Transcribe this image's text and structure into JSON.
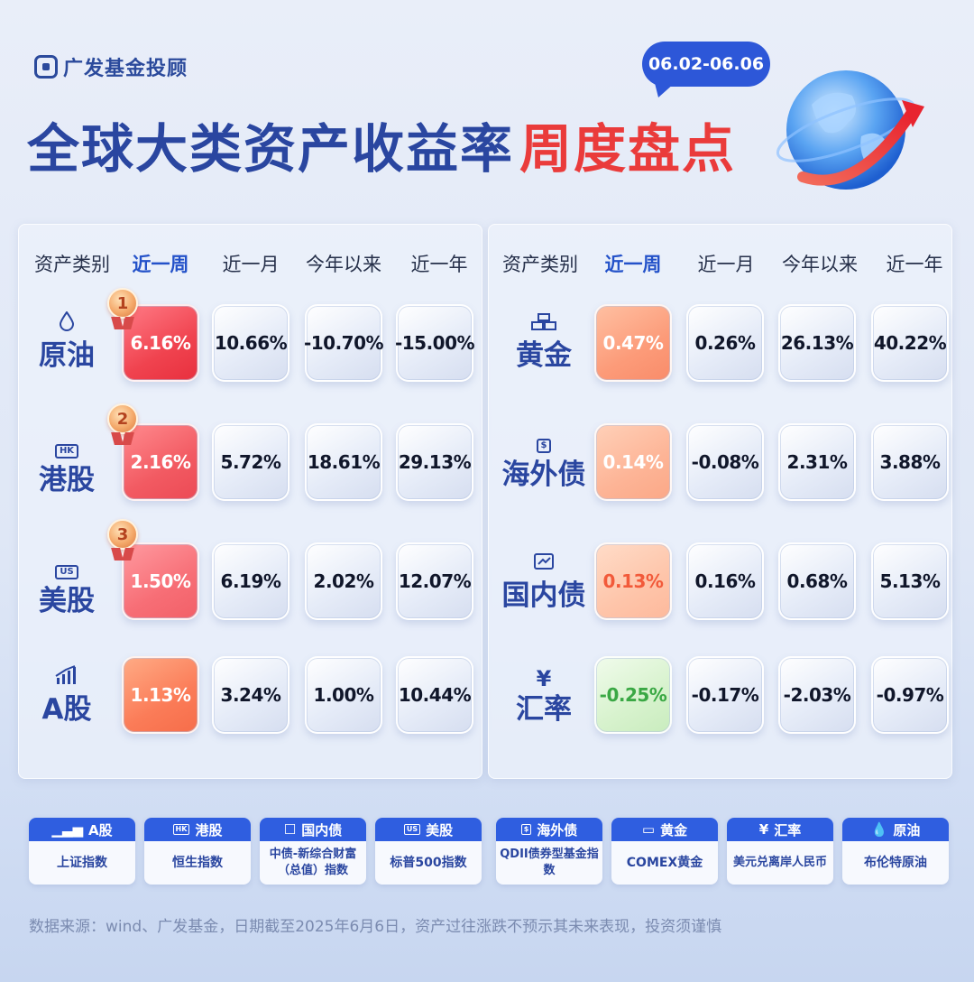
{
  "brand": {
    "name": "广发基金投顾"
  },
  "title": {
    "main": "全球大类资产收益率",
    "highlight": "周度盘点"
  },
  "date_range": "06.02-06.06",
  "headers": [
    "资产类别",
    "近一周",
    "近一月",
    "今年以来",
    "近一年"
  ],
  "left_table": [
    {
      "name": "原油",
      "icon": "droplet-icon",
      "icon_text": "",
      "rank": "1",
      "week": "6.16%",
      "month": "10.66%",
      "ytd": "-10.70%",
      "year": "-15.00%"
    },
    {
      "name": "港股",
      "icon": "hk-icon",
      "icon_text": "HK",
      "rank": "2",
      "week": "2.16%",
      "month": "5.72%",
      "ytd": "18.61%",
      "year": "29.13%"
    },
    {
      "name": "美股",
      "icon": "us-icon",
      "icon_text": "US",
      "rank": "3",
      "week": "1.50%",
      "month": "6.19%",
      "ytd": "2.02%",
      "year": "12.07%"
    },
    {
      "name": "A股",
      "icon": "bar-chart-icon",
      "icon_text": "",
      "rank": "",
      "week": "1.13%",
      "month": "3.24%",
      "ytd": "1.00%",
      "year": "10.44%"
    }
  ],
  "right_table": [
    {
      "name": "黄金",
      "icon": "gold-bars-icon",
      "icon_text": "",
      "week": "0.47%",
      "month": "0.26%",
      "ytd": "26.13%",
      "year": "40.22%"
    },
    {
      "name": "海外债",
      "icon": "dollar-bond-icon",
      "icon_text": "$",
      "week": "0.14%",
      "month": "-0.08%",
      "ytd": "2.31%",
      "year": "3.88%"
    },
    {
      "name": "国内债",
      "icon": "trend-bond-icon",
      "icon_text": "",
      "week": "0.13%",
      "month": "0.16%",
      "ytd": "0.68%",
      "year": "5.13%"
    },
    {
      "name": "汇率",
      "icon": "yen-icon",
      "icon_text": "¥",
      "week": "-0.25%",
      "month": "-0.17%",
      "ytd": "-2.03%",
      "year": "-0.97%"
    }
  ],
  "legend": [
    {
      "label": "A股",
      "icon": "bar-chart-icon",
      "icon_text": "",
      "index": "上证指数"
    },
    {
      "label": "港股",
      "icon": "hk-icon",
      "icon_text": "HK",
      "index": "恒生指数"
    },
    {
      "label": "国内债",
      "icon": "trend-bond-icon",
      "icon_text": "",
      "index": "中债-新综合财富（总值）指数"
    },
    {
      "label": "美股",
      "icon": "us-icon",
      "icon_text": "US",
      "index": "标普500指数"
    },
    {
      "label": "海外债",
      "icon": "dollar-bond-icon",
      "icon_text": "$",
      "index": "QDII债券型基金指数"
    },
    {
      "label": "黄金",
      "icon": "gold-bars-icon",
      "icon_text": "",
      "index": "COMEX黄金"
    },
    {
      "label": "汇率",
      "icon": "yen-icon",
      "icon_text": "¥",
      "index": "美元兑离岸人民币"
    },
    {
      "label": "原油",
      "icon": "droplet-icon",
      "icon_text": "",
      "index": "布伦特原油"
    }
  ],
  "footer": "数据来源：wind、广发基金，日期截至2025年6月6日，资产过往涨跌不预示其未来表现，投资须谨慎",
  "colors": {
    "brand_blue": "#2a46a0",
    "accent_red": "#ea3b3b",
    "legend_blue": "#2f5ee0",
    "negative_green": "#3aa844"
  }
}
